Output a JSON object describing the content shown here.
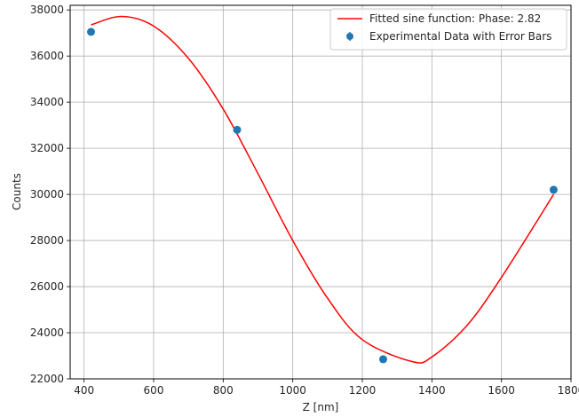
{
  "chart_data": {
    "type": "scatter",
    "xlabel": "Z [nm]",
    "ylabel": "Counts",
    "xlim": [
      360,
      1800
    ],
    "ylim": [
      22000,
      38200
    ],
    "xticks": [
      400,
      600,
      800,
      1000,
      1200,
      1400,
      1600,
      1800
    ],
    "yticks": [
      22000,
      24000,
      26000,
      28000,
      30000,
      32000,
      34000,
      36000,
      38000
    ],
    "grid": true,
    "legend_position": "top-right",
    "series": [
      {
        "name": "Experimental Data with Error Bars",
        "kind": "errorbar-scatter",
        "color": "#1f77b4",
        "x": [
          420,
          840,
          1260,
          1750
        ],
        "y": [
          37050,
          32800,
          22850,
          30200
        ]
      },
      {
        "name": "Fitted sine function: Phase: 2.82",
        "kind": "line",
        "color": "#ff0000",
        "x": [
          420,
          508,
          600,
          700,
          800,
          900,
          1000,
          1100,
          1200,
          1343,
          1400,
          1500,
          1600,
          1750
        ],
        "y": [
          37350,
          37720,
          37300,
          35900,
          33700,
          30900,
          28000,
          25500,
          23700,
          22750,
          22950,
          24300,
          26400,
          30000
        ]
      }
    ]
  }
}
